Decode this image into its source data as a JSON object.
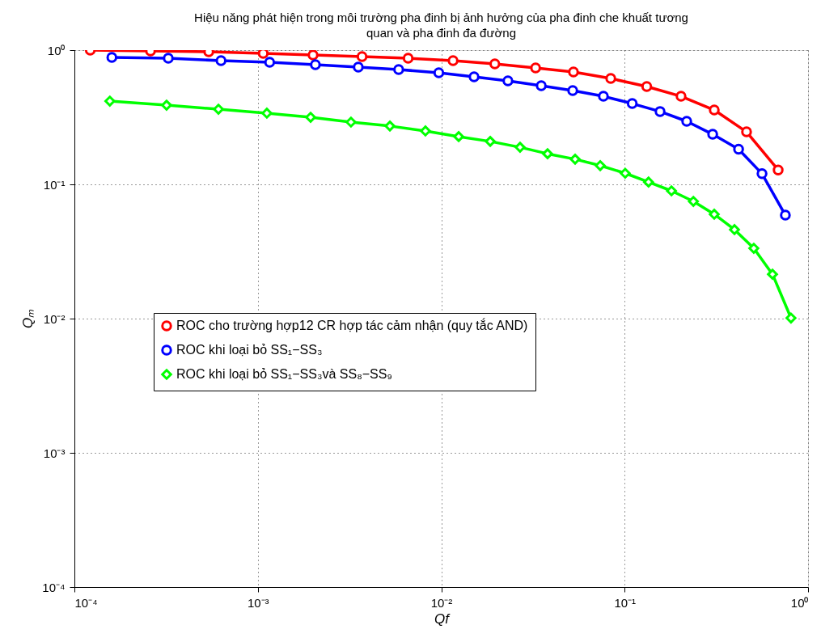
{
  "chart_data": {
    "type": "line",
    "title": "Hiệu năng phát hiện trong môi trường pha đinh  bị ảnh hưởng của pha đinh che khuất tương\nquan và pha đinh đa đường",
    "xlabel": "Qf",
    "ylabel": "Qₘ",
    "log": "xy",
    "grid": true,
    "legend": "left",
    "line_style": "solid",
    "xlim": [
      0.0001,
      1
    ],
    "ylim": [
      0.0001,
      1
    ],
    "xticks": [
      {
        "value": 0.0001,
        "label": "10⁻⁴"
      },
      {
        "value": 0.001,
        "label": "10⁻³"
      },
      {
        "value": 0.01,
        "label": "10⁻²"
      },
      {
        "value": 0.1,
        "label": "10⁻¹"
      },
      {
        "value": 1,
        "label": "10⁰"
      }
    ],
    "yticks": [
      {
        "value": 0.0001,
        "label": "10⁻⁴"
      },
      {
        "value": 0.001,
        "label": "10⁻³"
      },
      {
        "value": 0.01,
        "label": "10⁻²"
      },
      {
        "value": 0.1,
        "label": "10⁻¹"
      },
      {
        "value": 1,
        "label": "10⁰"
      }
    ],
    "series": [
      {
        "name": "ROC cho trường hợp12 CR hợp tác cảm nhận (quy tắc AND)",
        "color": "#ff0000",
        "marker": "circle",
        "x": [
          0.000122,
          0.00026,
          0.00054,
          0.00107,
          0.002,
          0.0037,
          0.0066,
          0.0116,
          0.0196,
          0.0327,
          0.0526,
          0.084,
          0.132,
          0.203,
          0.308,
          0.462,
          0.687
        ],
        "values": [
          1.0,
          0.986,
          0.973,
          0.946,
          0.92,
          0.895,
          0.87,
          0.835,
          0.79,
          0.737,
          0.688,
          0.615,
          0.536,
          0.453,
          0.358,
          0.246,
          0.128
        ]
      },
      {
        "name": "ROC khi loại bỏ SS₁−SS₃",
        "color": "#0000ff",
        "marker": "circle",
        "x": [
          0.00016,
          0.000325,
          0.00063,
          0.00116,
          0.00206,
          0.00353,
          0.00586,
          0.0097,
          0.0151,
          0.0231,
          0.0351,
          0.0521,
          0.0766,
          0.11,
          0.156,
          0.218,
          0.302,
          0.418,
          0.561,
          0.752
        ],
        "values": [
          0.882,
          0.87,
          0.835,
          0.812,
          0.779,
          0.747,
          0.717,
          0.678,
          0.633,
          0.59,
          0.543,
          0.5,
          0.453,
          0.4,
          0.349,
          0.295,
          0.236,
          0.183,
          0.12,
          0.059
        ]
      },
      {
        "name": "ROC khi loại bỏ SS₁−SS₃và  SS₈−SS₉",
        "color": "#00ff00",
        "marker": "diamond",
        "x": [
          0.000156,
          0.000318,
          0.00061,
          0.00112,
          0.00194,
          0.00322,
          0.00525,
          0.0082,
          0.01245,
          0.0185,
          0.0269,
          0.038,
          0.0537,
          0.0736,
          0.1007,
          0.135,
          0.18,
          0.237,
          0.308,
          0.397,
          0.506,
          0.64,
          0.807
        ],
        "values": [
          0.417,
          0.389,
          0.363,
          0.339,
          0.316,
          0.291,
          0.272,
          0.25,
          0.227,
          0.209,
          0.189,
          0.169,
          0.154,
          0.138,
          0.121,
          0.104,
          0.0895,
          0.0747,
          0.0599,
          0.046,
          0.0334,
          0.0214,
          0.0101
        ]
      }
    ]
  }
}
